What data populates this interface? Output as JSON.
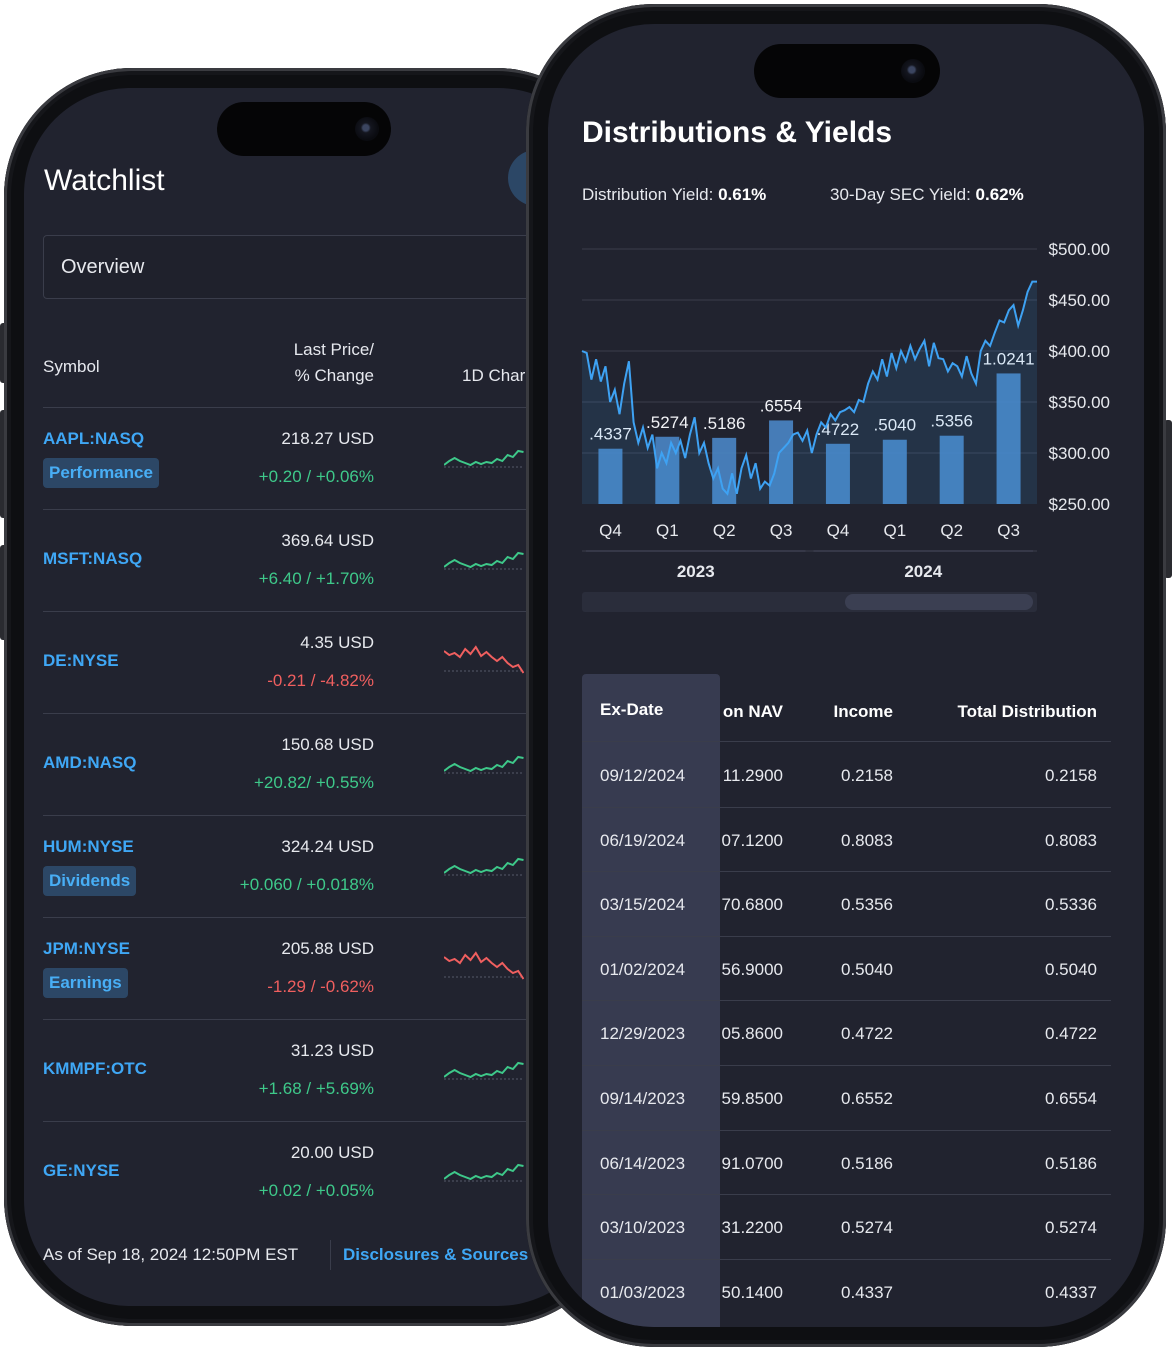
{
  "watchlist": {
    "title": "Watchlist",
    "dropdown_value": "Overview",
    "columns": {
      "symbol": "Symbol",
      "price_line1": "Last Price/",
      "price_line2": "% Change",
      "chart": "1D Char"
    },
    "rows": [
      {
        "symbol": "AAPL:NASQ",
        "tag": "Performance",
        "price": "218.27 USD",
        "change": "+0.20 / +0.06%",
        "dir": "up"
      },
      {
        "symbol": "MSFT:NASQ",
        "tag": "",
        "price": "369.64 USD",
        "change": "+6.40 / +1.70%",
        "dir": "up"
      },
      {
        "symbol": "DE:NYSE",
        "tag": "",
        "price": "4.35 USD",
        "change": "-0.21 / -4.82%",
        "dir": "down"
      },
      {
        "symbol": "AMD:NASQ",
        "tag": "",
        "price": "150.68 USD",
        "change": "+20.82/ +0.55%",
        "dir": "up"
      },
      {
        "symbol": "HUM:NYSE",
        "tag": "Dividends",
        "price": "324.24 USD",
        "change": "+0.060 / +0.018%",
        "dir": "up"
      },
      {
        "symbol": "JPM:NYSE",
        "tag": "Earnings",
        "price": "205.88 USD",
        "change": "-1.29 / -0.62%",
        "dir": "down"
      },
      {
        "symbol": "KMMPF:OTC",
        "tag": "",
        "price": "31.23 USD",
        "change": "+1.68 / +5.69%",
        "dir": "up"
      },
      {
        "symbol": "GE:NYSE",
        "tag": "",
        "price": "20.00 USD",
        "change": "+0.02 / +0.05%",
        "dir": "up"
      }
    ],
    "footer_asof": "As of Sep 18, 2024 12:50PM EST",
    "footer_link": "Disclosures & Sources"
  },
  "distributions": {
    "title": "Distributions & Yields",
    "distribution_yield_label": "Distribution Yield:",
    "distribution_yield_value": "0.61%",
    "sec_yield_label": "30-Day SEC Yield:",
    "sec_yield_value": "0.62%",
    "table": {
      "headers": [
        "Ex-Date",
        "on NAV",
        "Income",
        "Total Distribution"
      ],
      "rows": [
        [
          "09/12/2024",
          "11.2900",
          "0.2158",
          "0.2158"
        ],
        [
          "06/19/2024",
          "07.1200",
          "0.8083",
          "0.8083"
        ],
        [
          "03/15/2024",
          "70.6800",
          "0.5356",
          "0.5336"
        ],
        [
          "01/02/2024",
          "56.9000",
          "0.5040",
          "0.5040"
        ],
        [
          "12/29/2023",
          "05.8600",
          "0.4722",
          "0.4722"
        ],
        [
          "09/14/2023",
          "59.8500",
          "0.6552",
          "0.6554"
        ],
        [
          "06/14/2023",
          "91.0700",
          "0.5186",
          "0.5186"
        ],
        [
          "03/10/2023",
          "31.2200",
          "0.5274",
          "0.5274"
        ],
        [
          "01/03/2023",
          "50.1400",
          "0.4337",
          "0.4337"
        ]
      ]
    }
  },
  "chart_data": {
    "type": "bar",
    "categories": [
      "Q4",
      "Q1",
      "Q2",
      "Q3",
      "Q4",
      "Q1",
      "Q2",
      "Q3"
    ],
    "year_groups": [
      {
        "label": "2023",
        "span": 4
      },
      {
        "label": "2024",
        "span": 4
      }
    ],
    "series": [
      {
        "values": [
          0.4337,
          0.5274,
          0.5186,
          0.6554,
          0.4722,
          0.504,
          0.5356,
          1.0241
        ]
      }
    ],
    "bar_labels": [
      ".4337",
      ".5274",
      ".5186",
      ".6554",
      ".4722",
      ".5040",
      ".5356",
      "1.0241"
    ],
    "price_line": {
      "values": [
        400,
        398,
        372,
        392,
        370,
        385,
        350,
        362,
        338,
        368,
        390,
        330,
        310,
        325,
        305,
        318,
        285,
        300,
        290,
        310,
        300,
        312,
        295,
        318,
        335,
        300,
        310,
        290,
        275,
        285,
        265,
        260,
        280,
        260,
        285,
        298,
        275,
        290,
        265,
        272,
        268,
        280,
        300,
        305,
        310,
        318,
        320,
        312,
        322,
        300,
        318,
        330,
        325,
        338,
        332,
        340,
        342,
        345,
        340,
        352,
        350,
        368,
        380,
        372,
        392,
        375,
        398,
        383,
        400,
        390,
        405,
        392,
        402,
        410,
        385,
        408,
        393,
        392,
        380,
        388,
        385,
        375,
        395,
        378,
        368,
        400,
        410,
        405,
        418,
        430,
        428,
        440,
        445,
        425,
        440,
        458,
        468,
        468
      ]
    },
    "y_axis": {
      "min": 250,
      "max": 500,
      "ticks": [
        "$500.00",
        "$450.00",
        "$400.00",
        "$350.00",
        "$300.00",
        "$250.00"
      ]
    },
    "bar_scale_max": 2.0,
    "colors": {
      "bar": "#4a86c7",
      "line": "#3ea2f3",
      "grid": "#3a3d4b"
    }
  }
}
